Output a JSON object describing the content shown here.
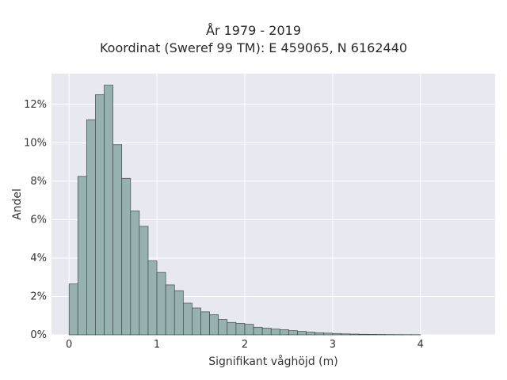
{
  "chart_data": {
    "type": "bar",
    "title_lines": [
      "År 1979 - 2019",
      "Koordinat (Sweref 99 TM): E 459065, N 6162440"
    ],
    "xlabel": "Signifikant våghöjd (m)",
    "ylabel": "Andel",
    "xlim": [
      -0.2,
      4.85
    ],
    "ylim": [
      0,
      13.6
    ],
    "x_ticks": [
      0,
      1,
      2,
      3,
      4
    ],
    "y_ticks": [
      0,
      2,
      4,
      6,
      8,
      10,
      12
    ],
    "y_tick_suffix": "%",
    "bin_start": 0.0,
    "bin_width": 0.1,
    "values": [
      2.65,
      8.25,
      11.2,
      12.5,
      13.0,
      9.9,
      8.15,
      6.45,
      5.65,
      3.85,
      3.25,
      2.6,
      2.3,
      1.65,
      1.4,
      1.2,
      1.05,
      0.8,
      0.65,
      0.6,
      0.55,
      0.4,
      0.35,
      0.3,
      0.27,
      0.22,
      0.18,
      0.14,
      0.11,
      0.09,
      0.07,
      0.05,
      0.04,
      0.03,
      0.025,
      0.02,
      0.015,
      0.012,
      0.01,
      0.008
    ],
    "grid": true,
    "colors": {
      "plot_bg": "#e8e8f0",
      "grid": "#ffffff",
      "bar_fill": "#97b1b1",
      "bar_stroke": "#3b4a4a"
    }
  }
}
